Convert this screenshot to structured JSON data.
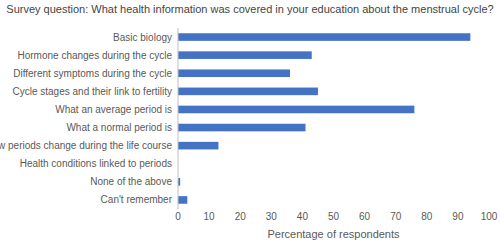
{
  "chart_data": {
    "type": "bar",
    "orientation": "horizontal",
    "title": "Survey question: What health information was covered in your education about the menstrual cycle?",
    "x_label": "Percentage of respondents",
    "categories": [
      "Basic biology",
      "Hormone changes during the cycle",
      "Different symptoms during the cycle",
      "Cycle stages and their link to fertility",
      "What an average period is",
      "What a normal period is",
      "How periods change during the life course",
      "Health conditions linked to periods",
      "None of the above",
      "Can't remember"
    ],
    "values": [
      94,
      43,
      36,
      45,
      76,
      41,
      13,
      0,
      0.7,
      3
    ],
    "color": "#4472c4",
    "xlim": [
      0,
      100
    ],
    "xticks": [
      0,
      10,
      20,
      30,
      40,
      50,
      60,
      70,
      80,
      90,
      100
    ],
    "grid": false
  }
}
